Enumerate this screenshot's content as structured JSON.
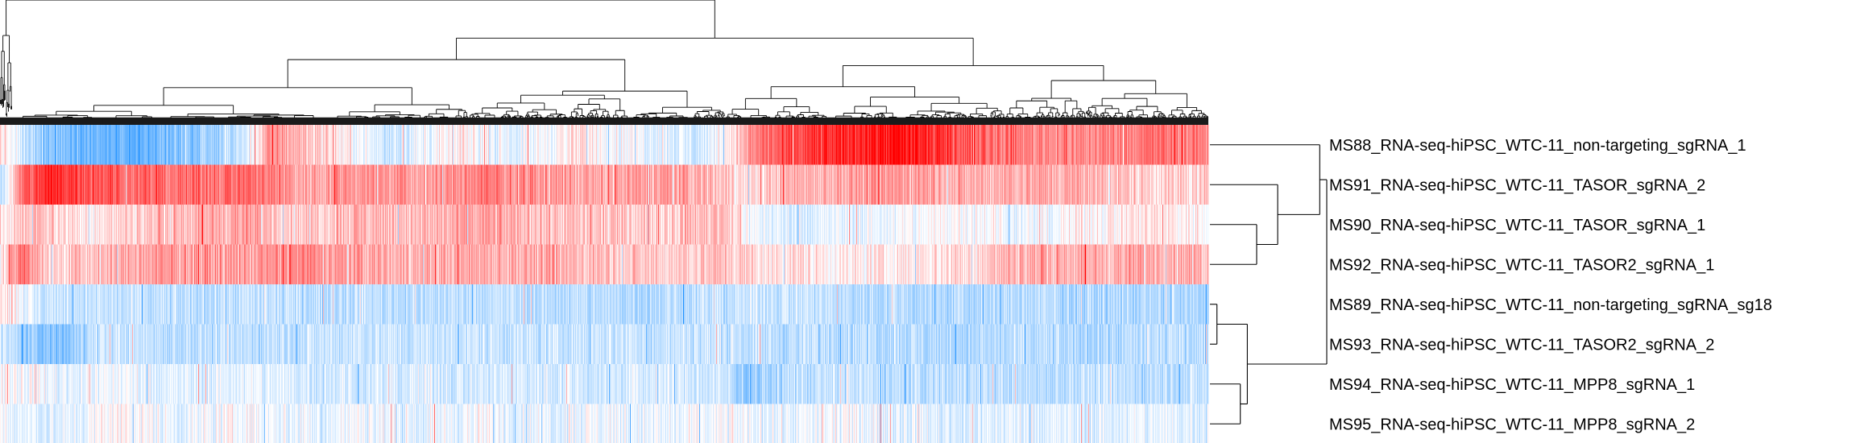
{
  "chart_data": {
    "type": "heatmap",
    "title": "",
    "xlabel": "",
    "ylabel": "",
    "legend": "none",
    "grid": false,
    "colors": {
      "low": "#1e90ff",
      "mid": "#ffffff",
      "high": "#ff0000"
    },
    "value_range": [
      -1,
      1
    ],
    "column_count": 1500,
    "rows": [
      {
        "label": "MS88_RNA-seq-hiPSC_WTC-11_non-targeting_sgRNA_1",
        "profile": [
          [
            0,
            0.15
          ],
          [
            0.02,
            -0.25
          ],
          [
            0.05,
            -0.55
          ],
          [
            0.08,
            -0.65
          ],
          [
            0.11,
            -0.75
          ],
          [
            0.14,
            -0.55
          ],
          [
            0.17,
            -0.45
          ],
          [
            0.2,
            -0.25
          ],
          [
            0.225,
            0.45
          ],
          [
            0.27,
            0.15
          ],
          [
            0.32,
            -0.2
          ],
          [
            0.38,
            0.05
          ],
          [
            0.43,
            -0.1
          ],
          [
            0.48,
            0.1
          ],
          [
            0.53,
            -0.05
          ],
          [
            0.58,
            -0.2
          ],
          [
            0.61,
            0.2
          ],
          [
            0.63,
            0.55
          ],
          [
            0.66,
            0.7
          ],
          [
            0.7,
            0.85
          ],
          [
            0.74,
            0.95
          ],
          [
            0.77,
            0.8
          ],
          [
            0.8,
            0.65
          ],
          [
            0.85,
            0.5
          ],
          [
            0.9,
            0.45
          ],
          [
            0.95,
            0.55
          ],
          [
            1,
            0.5
          ]
        ]
      },
      {
        "label": "MS91_RNA-seq-hiPSC_WTC-11_TASOR_sgRNA_2",
        "profile": [
          [
            0,
            -0.3
          ],
          [
            0.02,
            0.6
          ],
          [
            0.04,
            0.85
          ],
          [
            0.07,
            0.75
          ],
          [
            0.1,
            0.6
          ],
          [
            0.15,
            0.55
          ],
          [
            0.2,
            0.6
          ],
          [
            0.25,
            0.35
          ],
          [
            0.3,
            0.45
          ],
          [
            0.35,
            0.35
          ],
          [
            0.4,
            0.5
          ],
          [
            0.45,
            0.4
          ],
          [
            0.5,
            0.3
          ],
          [
            0.55,
            0.4
          ],
          [
            0.6,
            0.25
          ],
          [
            0.62,
            0.1
          ],
          [
            0.65,
            0.3
          ],
          [
            0.7,
            0.35
          ],
          [
            0.75,
            0.4
          ],
          [
            0.8,
            0.3
          ],
          [
            0.85,
            0.35
          ],
          [
            0.9,
            0.3
          ],
          [
            0.95,
            0.2
          ],
          [
            1,
            0.15
          ]
        ]
      },
      {
        "label": "MS90_RNA-seq-hiPSC_WTC-11_TASOR_sgRNA_1",
        "profile": [
          [
            0,
            0.1
          ],
          [
            0.03,
            0.3
          ],
          [
            0.06,
            0.1
          ],
          [
            0.1,
            0.15
          ],
          [
            0.15,
            0.3
          ],
          [
            0.2,
            0.35
          ],
          [
            0.25,
            0.2
          ],
          [
            0.3,
            0.3
          ],
          [
            0.35,
            0.25
          ],
          [
            0.4,
            0.35
          ],
          [
            0.45,
            0.25
          ],
          [
            0.5,
            0.2
          ],
          [
            0.55,
            0.2
          ],
          [
            0.6,
            0.3
          ],
          [
            0.62,
            -0.05
          ],
          [
            0.65,
            -0.15
          ],
          [
            0.7,
            -0.1
          ],
          [
            0.75,
            -0.05
          ],
          [
            0.8,
            0.05
          ],
          [
            0.85,
            -0.1
          ],
          [
            0.9,
            0.05
          ],
          [
            0.95,
            0.1
          ],
          [
            1,
            0.05
          ]
        ]
      },
      {
        "label": "MS92_RNA-seq-hiPSC_WTC-11_TASOR2_sgRNA_1",
        "profile": [
          [
            0,
            0.05
          ],
          [
            0.02,
            0.6
          ],
          [
            0.04,
            0.15
          ],
          [
            0.08,
            0.25
          ],
          [
            0.12,
            0.35
          ],
          [
            0.16,
            0.4
          ],
          [
            0.2,
            0.35
          ],
          [
            0.25,
            0.45
          ],
          [
            0.3,
            0.35
          ],
          [
            0.35,
            0.3
          ],
          [
            0.4,
            0.35
          ],
          [
            0.45,
            0.3
          ],
          [
            0.5,
            0.25
          ],
          [
            0.55,
            0.2
          ],
          [
            0.6,
            0.25
          ],
          [
            0.63,
            0.1
          ],
          [
            0.66,
            0.15
          ],
          [
            0.7,
            0.05
          ],
          [
            0.75,
            0.1
          ],
          [
            0.8,
            0.15
          ],
          [
            0.84,
            0.3
          ],
          [
            0.88,
            0.35
          ],
          [
            0.92,
            0.3
          ],
          [
            0.96,
            0.35
          ],
          [
            1,
            0.3
          ]
        ]
      },
      {
        "label": "MS89_RNA-seq-hiPSC_WTC-11_non-targeting_sgRNA_sg18",
        "profile": [
          [
            0,
            0.2
          ],
          [
            0.03,
            -0.2
          ],
          [
            0.08,
            -0.25
          ],
          [
            0.15,
            -0.3
          ],
          [
            0.2,
            -0.25
          ],
          [
            0.25,
            -0.3
          ],
          [
            0.3,
            -0.25
          ],
          [
            0.35,
            -0.3
          ],
          [
            0.4,
            -0.25
          ],
          [
            0.45,
            -0.3
          ],
          [
            0.5,
            -0.3
          ],
          [
            0.55,
            -0.3
          ],
          [
            0.6,
            -0.25
          ],
          [
            0.65,
            -0.2
          ],
          [
            0.7,
            -0.3
          ],
          [
            0.75,
            -0.3
          ],
          [
            0.8,
            -0.35
          ],
          [
            0.85,
            -0.3
          ],
          [
            0.9,
            -0.35
          ],
          [
            0.95,
            -0.35
          ],
          [
            1,
            -0.4
          ]
        ]
      },
      {
        "label": "MS93_RNA-seq-hiPSC_WTC-11_TASOR2_sgRNA_2",
        "profile": [
          [
            0,
            -0.1
          ],
          [
            0.02,
            -0.45
          ],
          [
            0.05,
            -0.55
          ],
          [
            0.08,
            -0.2
          ],
          [
            0.12,
            -0.25
          ],
          [
            0.18,
            -0.3
          ],
          [
            0.25,
            -0.25
          ],
          [
            0.3,
            -0.2
          ],
          [
            0.35,
            -0.25
          ],
          [
            0.4,
            -0.2
          ],
          [
            0.45,
            -0.25
          ],
          [
            0.5,
            -0.2
          ],
          [
            0.55,
            -0.25
          ],
          [
            0.6,
            -0.2
          ],
          [
            0.65,
            -0.3
          ],
          [
            0.7,
            -0.25
          ],
          [
            0.75,
            -0.3
          ],
          [
            0.8,
            -0.35
          ],
          [
            0.85,
            -0.3
          ],
          [
            0.9,
            -0.35
          ],
          [
            0.95,
            -0.3
          ],
          [
            1,
            -0.3
          ]
        ]
      },
      {
        "label": "MS94_RNA-seq-hiPSC_WTC-11_MPP8_sgRNA_1",
        "profile": [
          [
            0,
            0.05
          ],
          [
            0.05,
            -0.1
          ],
          [
            0.1,
            -0.05
          ],
          [
            0.15,
            -0.15
          ],
          [
            0.2,
            -0.1
          ],
          [
            0.25,
            -0.15
          ],
          [
            0.3,
            -0.2
          ],
          [
            0.35,
            -0.15
          ],
          [
            0.4,
            -0.2
          ],
          [
            0.45,
            -0.15
          ],
          [
            0.5,
            -0.2
          ],
          [
            0.55,
            -0.15
          ],
          [
            0.6,
            -0.25
          ],
          [
            0.62,
            -0.5
          ],
          [
            0.65,
            -0.3
          ],
          [
            0.7,
            -0.25
          ],
          [
            0.75,
            -0.3
          ],
          [
            0.8,
            -0.25
          ],
          [
            0.85,
            -0.3
          ],
          [
            0.9,
            -0.25
          ],
          [
            0.95,
            -0.3
          ],
          [
            1,
            -0.25
          ]
        ]
      },
      {
        "label": "MS95_RNA-seq-hiPSC_WTC-11_MPP8_sgRNA_2",
        "profile": [
          [
            0,
            -0.05
          ],
          [
            0.05,
            -0.15
          ],
          [
            0.1,
            0.05
          ],
          [
            0.15,
            -0.1
          ],
          [
            0.2,
            0.0
          ],
          [
            0.25,
            -0.1
          ],
          [
            0.3,
            -0.05
          ],
          [
            0.35,
            -0.1
          ],
          [
            0.4,
            -0.05
          ],
          [
            0.45,
            -0.1
          ],
          [
            0.5,
            -0.05
          ],
          [
            0.55,
            -0.1
          ],
          [
            0.6,
            -0.05
          ],
          [
            0.65,
            -0.1
          ],
          [
            0.7,
            -0.05
          ],
          [
            0.75,
            -0.1
          ],
          [
            0.8,
            -0.15
          ],
          [
            0.85,
            -0.1
          ],
          [
            0.9,
            -0.15
          ],
          [
            0.95,
            -0.1
          ],
          [
            1,
            -0.1
          ]
        ]
      }
    ],
    "row_dendrogram": {
      "order": [
        0,
        1,
        2,
        3,
        4,
        5,
        6,
        7
      ],
      "merges": [
        {
          "left": "r2",
          "right": "r3",
          "height": 0.2
        },
        {
          "left": "r1",
          "right": "m0",
          "height": 0.29
        },
        {
          "left": "r0",
          "right": "m1",
          "height": 0.47
        },
        {
          "left": "r4",
          "right": "r5",
          "height": 0.03
        },
        {
          "left": "r6",
          "right": "r7",
          "height": 0.13
        },
        {
          "left": "m3",
          "right": "m4",
          "height": 0.16
        },
        {
          "left": "m2",
          "right": "m5",
          "height": 0.5
        }
      ]
    },
    "column_dendrogram": {
      "note_free": true,
      "major_split": 0.6,
      "outlier_columns": 0.01,
      "merge_heights": {
        "root": 1.0,
        "outlier_branch": 0.78,
        "main": 0.68,
        "left_cluster": 0.5,
        "right_cluster": 0.45
      }
    }
  }
}
